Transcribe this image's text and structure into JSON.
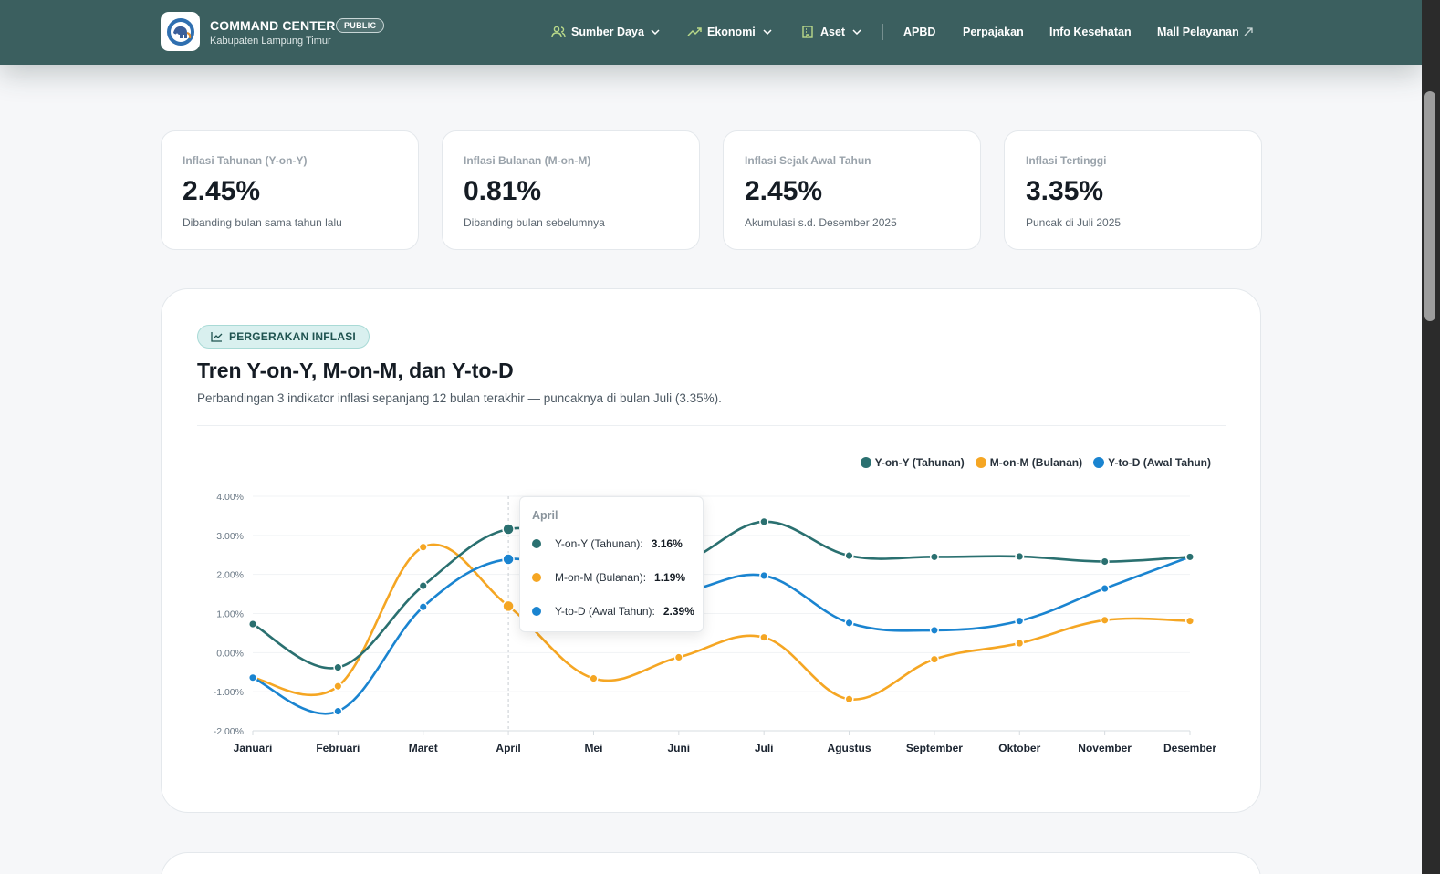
{
  "header": {
    "title": "COMMAND CENTER",
    "badge": "PUBLIC",
    "subtitle": "Kabupaten Lampung Timur",
    "nav": {
      "sumber_daya": "Sumber Daya",
      "ekonomi": "Ekonomi",
      "aset": "Aset",
      "apbd": "APBD",
      "perpajakan": "Perpajakan",
      "info_kesehatan": "Info Kesehatan",
      "mall_pelayanan": "Mall Pelayanan"
    }
  },
  "stats": [
    {
      "label": "Inflasi Tahunan (Y-on-Y)",
      "value": "2.45%",
      "note": "Dibanding bulan sama tahun lalu"
    },
    {
      "label": "Inflasi Bulanan (M-on-M)",
      "value": "0.81%",
      "note": "Dibanding bulan sebelumnya"
    },
    {
      "label": "Inflasi Sejak Awal Tahun",
      "value": "2.45%",
      "note": "Akumulasi s.d. Desember 2025"
    },
    {
      "label": "Inflasi Tertinggi",
      "value": "3.35%",
      "note": "Puncak di Juli 2025"
    }
  ],
  "chart_card": {
    "pill": "PERGERAKAN INFLASI",
    "title": "Tren Y-on-Y, M-on-M, dan Y-to-D",
    "subtitle": "Perbandingan 3 indikator inflasi sepanjang 12 bulan terakhir — puncaknya di bulan Juli (3.35%)."
  },
  "chart_data": {
    "type": "line",
    "categories": [
      "Januari",
      "Februari",
      "Maret",
      "April",
      "Mei",
      "Juni",
      "Juli",
      "Agustus",
      "September",
      "Oktober",
      "November",
      "Desember"
    ],
    "series": [
      {
        "name": "Y-on-Y (Tahunan)",
        "color": "#2a7070",
        "values": [
          0.73,
          -0.38,
          1.71,
          3.16,
          2.55,
          2.3,
          3.35,
          2.48,
          2.45,
          2.46,
          2.33,
          2.45
        ]
      },
      {
        "name": "M-on-M (Bulanan)",
        "color": "#f5a623",
        "values": [
          -0.64,
          -0.86,
          2.7,
          1.19,
          -0.66,
          -0.12,
          0.39,
          -1.19,
          -0.17,
          0.24,
          0.83,
          0.81
        ]
      },
      {
        "name": "Y-to-D (Awal Tahun)",
        "color": "#1a84d0",
        "values": [
          -0.64,
          -1.5,
          1.17,
          2.39,
          1.7,
          1.55,
          1.97,
          0.76,
          0.57,
          0.81,
          1.64,
          2.45
        ]
      }
    ],
    "y_ticks": [
      "4.00%",
      "3.00%",
      "2.00%",
      "1.00%",
      "0.00%",
      "-1.00%",
      "-2.00%"
    ],
    "ylim": [
      -2,
      4
    ],
    "legend_position": "top-right",
    "highlight_index": 3,
    "tooltip": {
      "title": "April",
      "rows": [
        {
          "label": "Y-on-Y (Tahunan):",
          "value": "3.16%"
        },
        {
          "label": "M-on-M (Bulanan):",
          "value": "1.19%"
        },
        {
          "label": "Y-to-D (Awal Tahun):",
          "value": "2.39%"
        }
      ]
    }
  }
}
